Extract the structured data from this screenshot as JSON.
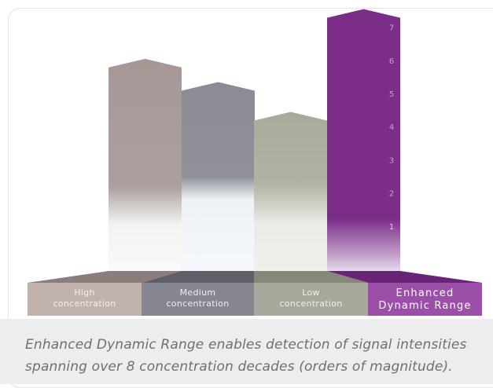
{
  "chart_data": {
    "type": "bar",
    "categories": [
      "High concentration",
      "Medium concentration",
      "Low concentration",
      "Enhanced Dynamic Range"
    ],
    "category_lines": [
      [
        "High",
        "concentration"
      ],
      [
        "Medium",
        "concentration"
      ],
      [
        "Low",
        "concentration"
      ],
      [
        "Enhanced",
        "Dynamic Range"
      ]
    ],
    "values": [
      6.4,
      5.7,
      4.8,
      7.9
    ],
    "ylim": [
      0,
      8
    ],
    "yticks": [
      "1",
      "2",
      "3",
      "4",
      "5",
      "6",
      "7"
    ],
    "title": "",
    "xlabel": "",
    "ylabel": "",
    "colors": [
      "#a79896",
      "#8a8b95",
      "#a8aa9a",
      "#7b2d88"
    ],
    "label_colors": [
      "#c1b2ad",
      "#85868f",
      "#a7a99c",
      "#9b4fa8"
    ]
  },
  "caption": {
    "line1": "Enhanced Dynamic Range enables detection of signal intensities",
    "line2": "spanning over 8 concentration decades (orders of magnitude)."
  }
}
